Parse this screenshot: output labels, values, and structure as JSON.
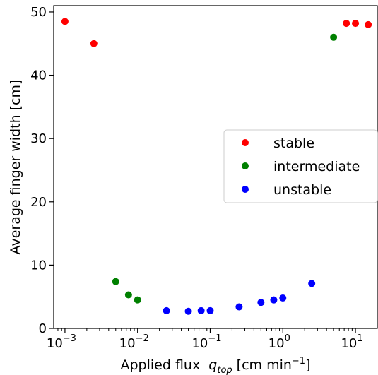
{
  "chart_data": {
    "type": "scatter",
    "xlabel": "Applied flux",
    "xlabel_symbol": "q",
    "xlabel_subscript": "top",
    "xlabel_unit_prefix": "[cm min",
    "xlabel_unit_exponent": "−1",
    "xlabel_unit_suffix": "]",
    "ylabel": "Average finger width [cm]",
    "x_scale": "log",
    "xlim": [
      0.0007,
      20
    ],
    "ylim": [
      0,
      51
    ],
    "x_ticks": [
      {
        "value": 0.001,
        "base": "10",
        "exp": "−3"
      },
      {
        "value": 0.01,
        "base": "10",
        "exp": "−2"
      },
      {
        "value": 0.1,
        "base": "10",
        "exp": "−1"
      },
      {
        "value": 1,
        "base": "10",
        "exp": "0"
      },
      {
        "value": 10,
        "base": "10",
        "exp": "1"
      }
    ],
    "y_ticks": [
      0,
      10,
      20,
      30,
      40,
      50
    ],
    "grid": false,
    "legend_position": "center-right",
    "series": [
      {
        "name": "stable",
        "color": "#ff0000",
        "points": [
          [
            0.001,
            48.5
          ],
          [
            0.0025,
            45.0
          ],
          [
            7.5,
            48.2
          ],
          [
            10,
            48.2
          ],
          [
            15,
            48.0
          ]
        ]
      },
      {
        "name": "intermediate",
        "color": "#008000",
        "points": [
          [
            0.005,
            7.4
          ],
          [
            0.0075,
            5.3
          ],
          [
            0.01,
            4.5
          ],
          [
            5,
            46.0
          ]
        ]
      },
      {
        "name": "unstable",
        "color": "#0000ff",
        "points": [
          [
            0.025,
            2.8
          ],
          [
            0.05,
            2.7
          ],
          [
            0.075,
            2.8
          ],
          [
            0.1,
            2.8
          ],
          [
            0.25,
            3.4
          ],
          [
            0.5,
            4.1
          ],
          [
            0.75,
            4.5
          ],
          [
            1,
            4.8
          ],
          [
            2.5,
            7.1
          ]
        ]
      }
    ]
  }
}
